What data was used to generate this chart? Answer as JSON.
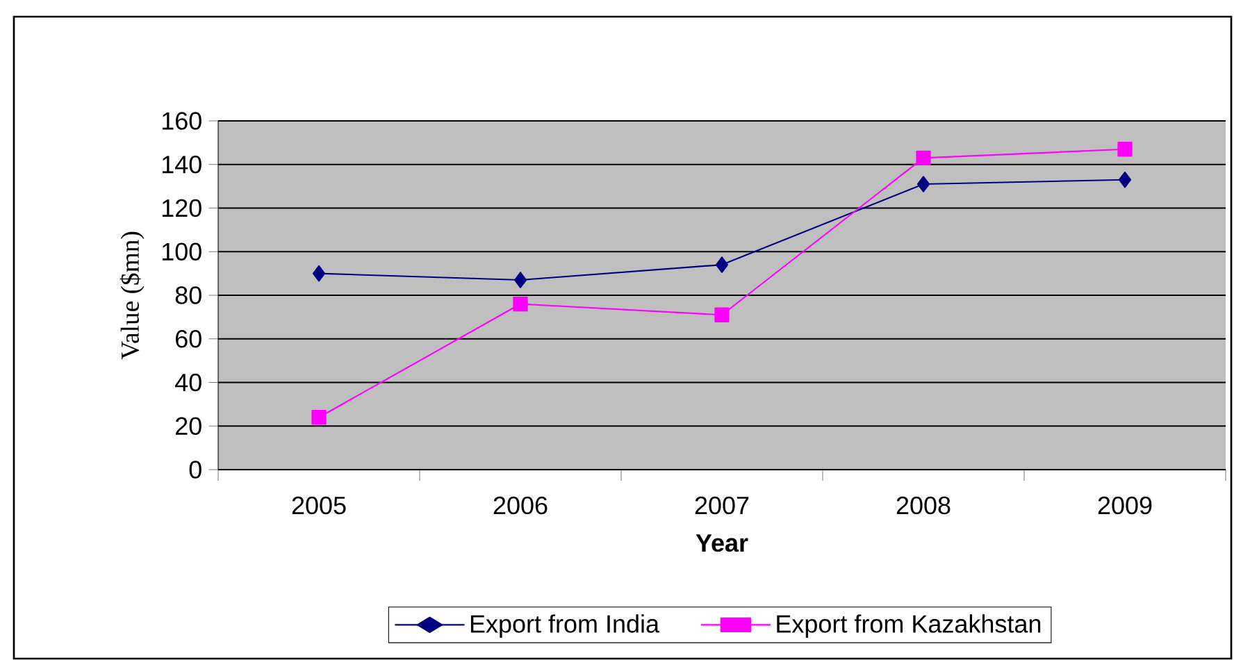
{
  "chart_data": {
    "type": "line",
    "xlabel": "Year",
    "ylabel": "Value ($mn)",
    "categories": [
      "2005",
      "2006",
      "2007",
      "2008",
      "2009"
    ],
    "series": [
      {
        "name": "Export from India",
        "color": "#000080",
        "marker": "diamond",
        "values": [
          90,
          87,
          94,
          131,
          133
        ]
      },
      {
        "name": "Export from Kazakhstan",
        "color": "#ff00ff",
        "marker": "square",
        "values": [
          24,
          76,
          71,
          143,
          147
        ]
      }
    ],
    "ylim": [
      0,
      160
    ],
    "yticks": [
      0,
      20,
      40,
      60,
      80,
      100,
      120,
      140,
      160
    ],
    "grid": "y",
    "legend": "bottom"
  }
}
